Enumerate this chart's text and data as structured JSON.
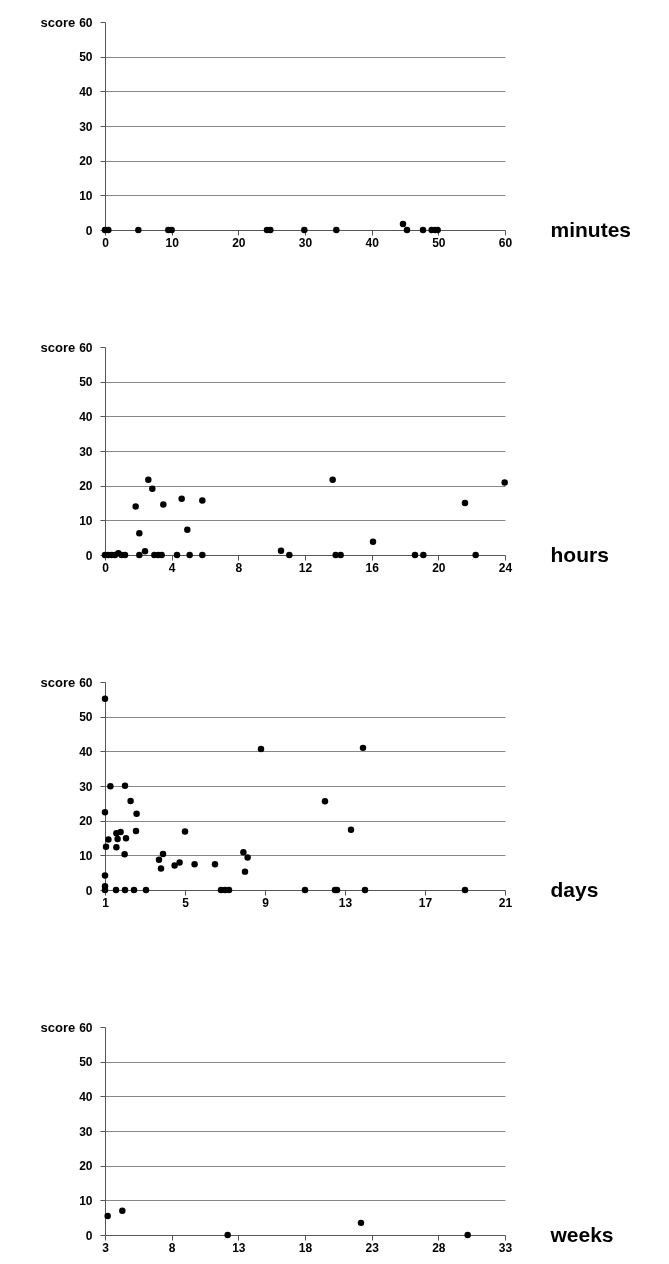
{
  "chart_data": [
    {
      "type": "scatter",
      "ylabel": "score",
      "xlabel": "minutes",
      "xlim": [
        0,
        60
      ],
      "xticks": [
        0,
        10,
        20,
        30,
        40,
        50,
        60
      ],
      "ylim": [
        0,
        60
      ],
      "yticks": [
        0,
        10,
        20,
        30,
        40,
        50,
        60
      ],
      "grid": "y",
      "marker": "circle",
      "x": [
        0,
        0.5,
        5,
        9.5,
        10,
        24.3,
        24.8,
        29.9,
        34.7,
        44.7,
        45.3,
        47.7,
        49,
        49.5,
        49.9
      ],
      "series": [
        {
          "color": "#000000",
          "values": [
            0,
            0,
            0,
            0,
            0,
            0,
            0,
            0,
            0,
            1.7,
            0,
            0,
            0,
            0,
            0
          ]
        }
      ]
    },
    {
      "type": "scatter",
      "ylabel": "score",
      "xlabel": "hours",
      "xlim": [
        0,
        24
      ],
      "xticks": [
        0,
        4,
        8,
        12,
        16,
        20,
        24
      ],
      "ylim": [
        0,
        60
      ],
      "yticks": [
        0,
        10,
        20,
        30,
        40,
        50,
        60
      ],
      "grid": "y",
      "marker": "circle",
      "x": [
        0,
        0.2,
        0.4,
        0.6,
        0.8,
        1.0,
        1.2,
        1.84,
        2.06,
        2.06,
        2.4,
        2.6,
        2.84,
        2.96,
        3.2,
        3.4,
        3.5,
        4.32,
        4.6,
        4.94,
        5.08,
        5.84,
        5.84,
        10.56,
        11.06,
        13.66,
        13.84,
        14.14,
        16.08,
        18.6,
        19.1,
        21.6,
        22.24,
        23.98
      ],
      "series": [
        {
          "color": "#000000",
          "values": [
            0,
            0,
            0,
            0,
            0.5,
            0,
            0,
            14,
            6.3,
            0,
            1.1,
            21.7,
            19.1,
            0,
            0,
            0,
            14.6,
            0,
            16.2,
            7.3,
            0,
            15.7,
            0,
            1.2,
            0,
            21.7,
            0,
            0,
            3.8,
            0,
            0,
            15,
            0,
            20.9
          ]
        }
      ]
    },
    {
      "type": "scatter",
      "ylabel": "score",
      "xlabel": "days",
      "xlim": [
        1,
        21
      ],
      "xticks": [
        1,
        5,
        9,
        13,
        17,
        21
      ],
      "ylim": [
        0,
        60
      ],
      "yticks": [
        0,
        10,
        20,
        30,
        40,
        50,
        60
      ],
      "grid": "y",
      "marker": "circle",
      "x": [
        1,
        1.27,
        2,
        2.28,
        1,
        2.58,
        2.55,
        5,
        1.57,
        1.78,
        1.17,
        1.63,
        2.05,
        1.05,
        1.57,
        1.98,
        3.9,
        3.7,
        3.8,
        4.48,
        4.73,
        5.48,
        6.5,
        7.92,
        8.13,
        8,
        8.8,
        1,
        1,
        12,
        13.3,
        13.9,
        1,
        1.55,
        2,
        2.45,
        3.05,
        6.8,
        7,
        7.2,
        11,
        12.5,
        12.6,
        14,
        19
      ],
      "series": [
        {
          "color": "#000000",
          "values": [
            55.2,
            29.9,
            30.1,
            25.7,
            22.4,
            22,
            17,
            16.9,
            16.4,
            16.7,
            14.6,
            14.7,
            14.9,
            12.5,
            12.3,
            10.3,
            10.4,
            8.7,
            6.2,
            7.1,
            7.9,
            7.4,
            7.4,
            10.9,
            9.4,
            5.3,
            40.7,
            4.2,
            1.1,
            25.6,
            17.4,
            41,
            0,
            0,
            0,
            0,
            0,
            0,
            0,
            0,
            0,
            0,
            0,
            0,
            0
          ]
        }
      ]
    },
    {
      "type": "scatter",
      "ylabel": "score",
      "xlabel": "weeks",
      "xlim": [
        3,
        33
      ],
      "xticks": [
        3,
        8,
        13,
        18,
        23,
        28,
        33
      ],
      "ylim": [
        0,
        60
      ],
      "yticks": [
        0,
        10,
        20,
        30,
        40,
        50,
        60
      ],
      "grid": "y",
      "marker": "circle",
      "x": [
        3.2,
        4.3,
        12.2,
        22.2,
        30.2
      ],
      "series": [
        {
          "color": "#000000",
          "values": [
            5.5,
            7,
            0,
            3.5,
            0
          ]
        }
      ]
    }
  ]
}
